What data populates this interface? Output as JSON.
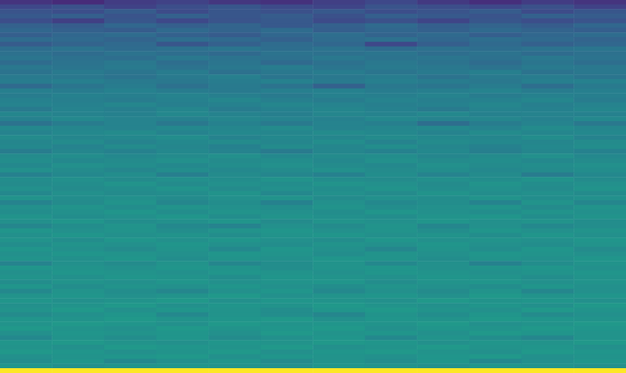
{
  "chart_data": {
    "type": "heatmap",
    "tick_labels": false,
    "grid": false,
    "value_range": [
      0,
      1
    ],
    "cells": [
      [
        0.15,
        0.12,
        0.18,
        0.2,
        0.16,
        0.14,
        0.19,
        0.22,
        0.17,
        0.13,
        0.18,
        0.15
      ],
      [
        0.22,
        0.25,
        0.2,
        0.24,
        0.27,
        0.23,
        0.21,
        0.26,
        0.24,
        0.22,
        0.25,
        0.2
      ],
      [
        0.26,
        0.24,
        0.29,
        0.23,
        0.27,
        0.25,
        0.28,
        0.24,
        0.26,
        0.29,
        0.23,
        0.27
      ],
      [
        0.28,
        0.3,
        0.26,
        0.31,
        0.27,
        0.29,
        0.25,
        0.3,
        0.28,
        0.26,
        0.31,
        0.29
      ],
      [
        0.24,
        0.19,
        0.27,
        0.22,
        0.26,
        0.28,
        0.23,
        0.25,
        0.21,
        0.27,
        0.24,
        0.26
      ],
      [
        0.31,
        0.29,
        0.33,
        0.3,
        0.32,
        0.28,
        0.31,
        0.34,
        0.3,
        0.32,
        0.29,
        0.33
      ],
      [
        0.33,
        0.31,
        0.29,
        0.34,
        0.32,
        0.35,
        0.3,
        0.33,
        0.31,
        0.34,
        0.32,
        0.3
      ],
      [
        0.3,
        0.33,
        0.35,
        0.31,
        0.29,
        0.33,
        0.36,
        0.32,
        0.34,
        0.3,
        0.33,
        0.35
      ],
      [
        0.35,
        0.34,
        0.32,
        0.36,
        0.34,
        0.31,
        0.35,
        0.37,
        0.33,
        0.36,
        0.34,
        0.32
      ],
      [
        0.29,
        0.32,
        0.34,
        0.27,
        0.31,
        0.35,
        0.33,
        0.22,
        0.3,
        0.34,
        0.31,
        0.33
      ],
      [
        0.36,
        0.38,
        0.35,
        0.37,
        0.39,
        0.36,
        0.38,
        0.35,
        0.37,
        0.36,
        0.38,
        0.39
      ],
      [
        0.37,
        0.35,
        0.38,
        0.36,
        0.34,
        0.38,
        0.37,
        0.39,
        0.36,
        0.38,
        0.35,
        0.37
      ],
      [
        0.39,
        0.37,
        0.36,
        0.4,
        0.38,
        0.37,
        0.4,
        0.38,
        0.39,
        0.37,
        0.4,
        0.38
      ],
      [
        0.35,
        0.38,
        0.4,
        0.36,
        0.39,
        0.34,
        0.37,
        0.4,
        0.38,
        0.35,
        0.39,
        0.36
      ],
      [
        0.4,
        0.39,
        0.41,
        0.38,
        0.4,
        0.42,
        0.39,
        0.41,
        0.4,
        0.38,
        0.41,
        0.4
      ],
      [
        0.38,
        0.41,
        0.39,
        0.42,
        0.37,
        0.4,
        0.42,
        0.39,
        0.41,
        0.43,
        0.38,
        0.4
      ],
      [
        0.41,
        0.4,
        0.38,
        0.41,
        0.43,
        0.39,
        0.4,
        0.42,
        0.38,
        0.41,
        0.42,
        0.39
      ],
      [
        0.42,
        0.43,
        0.41,
        0.4,
        0.42,
        0.44,
        0.41,
        0.43,
        0.42,
        0.4,
        0.43,
        0.44
      ],
      [
        0.34,
        0.39,
        0.42,
        0.37,
        0.41,
        0.38,
        0.31,
        0.4,
        0.39,
        0.42,
        0.36,
        0.41
      ],
      [
        0.43,
        0.42,
        0.44,
        0.42,
        0.41,
        0.43,
        0.44,
        0.42,
        0.43,
        0.45,
        0.42,
        0.43
      ],
      [
        0.42,
        0.44,
        0.43,
        0.45,
        0.43,
        0.41,
        0.44,
        0.43,
        0.45,
        0.42,
        0.44,
        0.43
      ],
      [
        0.44,
        0.43,
        0.42,
        0.44,
        0.46,
        0.43,
        0.42,
        0.45,
        0.43,
        0.44,
        0.46,
        0.42
      ],
      [
        0.45,
        0.44,
        0.46,
        0.43,
        0.44,
        0.46,
        0.45,
        0.43,
        0.44,
        0.46,
        0.43,
        0.45
      ],
      [
        0.41,
        0.45,
        0.43,
        0.46,
        0.42,
        0.44,
        0.46,
        0.44,
        0.41,
        0.45,
        0.44,
        0.46
      ],
      [
        0.46,
        0.45,
        0.44,
        0.47,
        0.45,
        0.43,
        0.46,
        0.45,
        0.47,
        0.44,
        0.45,
        0.44
      ],
      [
        0.44,
        0.47,
        0.45,
        0.44,
        0.46,
        0.45,
        0.44,
        0.47,
        0.45,
        0.46,
        0.44,
        0.47
      ],
      [
        0.38,
        0.42,
        0.45,
        0.4,
        0.44,
        0.41,
        0.45,
        0.43,
        0.36,
        0.42,
        0.45,
        0.4
      ],
      [
        0.47,
        0.46,
        0.45,
        0.47,
        0.46,
        0.48,
        0.45,
        0.46,
        0.47,
        0.45,
        0.48,
        0.46
      ],
      [
        0.45,
        0.47,
        0.48,
        0.45,
        0.47,
        0.46,
        0.48,
        0.47,
        0.45,
        0.48,
        0.46,
        0.47
      ],
      [
        0.48,
        0.46,
        0.47,
        0.49,
        0.45,
        0.47,
        0.46,
        0.48,
        0.47,
        0.46,
        0.49,
        0.45
      ],
      [
        0.46,
        0.48,
        0.45,
        0.47,
        0.48,
        0.46,
        0.49,
        0.45,
        0.48,
        0.47,
        0.46,
        0.48
      ],
      [
        0.47,
        0.45,
        0.48,
        0.46,
        0.44,
        0.48,
        0.46,
        0.49,
        0.46,
        0.44,
        0.47,
        0.49
      ],
      [
        0.42,
        0.46,
        0.44,
        0.47,
        0.45,
        0.41,
        0.46,
        0.44,
        0.47,
        0.43,
        0.46,
        0.44
      ],
      [
        0.48,
        0.49,
        0.47,
        0.48,
        0.5,
        0.47,
        0.48,
        0.49,
        0.46,
        0.48,
        0.5,
        0.47
      ],
      [
        0.49,
        0.47,
        0.48,
        0.5,
        0.48,
        0.49,
        0.47,
        0.5,
        0.48,
        0.49,
        0.47,
        0.48
      ],
      [
        0.47,
        0.5,
        0.49,
        0.47,
        0.49,
        0.5,
        0.48,
        0.47,
        0.5,
        0.48,
        0.49,
        0.5
      ],
      [
        0.5,
        0.48,
        0.46,
        0.49,
        0.47,
        0.48,
        0.5,
        0.48,
        0.49,
        0.47,
        0.48,
        0.49
      ],
      [
        0.44,
        0.47,
        0.49,
        0.43,
        0.48,
        0.46,
        0.44,
        0.49,
        0.45,
        0.48,
        0.42,
        0.47
      ],
      [
        0.49,
        0.5,
        0.48,
        0.5,
        0.49,
        0.51,
        0.49,
        0.48,
        0.5,
        0.49,
        0.51,
        0.48
      ],
      [
        0.48,
        0.49,
        0.51,
        0.48,
        0.5,
        0.49,
        0.51,
        0.5,
        0.48,
        0.51,
        0.49,
        0.5
      ],
      [
        0.5,
        0.48,
        0.49,
        0.51,
        0.48,
        0.5,
        0.49,
        0.51,
        0.49,
        0.5,
        0.48,
        0.51
      ],
      [
        0.47,
        0.5,
        0.48,
        0.49,
        0.51,
        0.47,
        0.5,
        0.48,
        0.51,
        0.49,
        0.5,
        0.48
      ],
      [
        0.51,
        0.49,
        0.5,
        0.48,
        0.5,
        0.51,
        0.48,
        0.5,
        0.49,
        0.51,
        0.49,
        0.5
      ],
      [
        0.45,
        0.48,
        0.51,
        0.46,
        0.49,
        0.44,
        0.5,
        0.47,
        0.49,
        0.45,
        0.51,
        0.46
      ],
      [
        0.5,
        0.51,
        0.49,
        0.51,
        0.5,
        0.49,
        0.51,
        0.49,
        0.5,
        0.51,
        0.48,
        0.51
      ],
      [
        0.49,
        0.5,
        0.52,
        0.49,
        0.51,
        0.5,
        0.49,
        0.52,
        0.5,
        0.49,
        0.51,
        0.5
      ],
      [
        0.51,
        0.49,
        0.5,
        0.52,
        0.49,
        0.51,
        0.5,
        0.49,
        0.51,
        0.52,
        0.49,
        0.51
      ],
      [
        0.5,
        0.52,
        0.49,
        0.5,
        0.52,
        0.48,
        0.51,
        0.5,
        0.52,
        0.5,
        0.51,
        0.49
      ],
      [
        0.46,
        0.49,
        0.51,
        0.47,
        0.45,
        0.5,
        0.48,
        0.51,
        0.46,
        0.5,
        0.47,
        0.49
      ],
      [
        0.52,
        0.5,
        0.51,
        0.49,
        0.51,
        0.52,
        0.5,
        0.51,
        0.49,
        0.52,
        0.5,
        0.51
      ],
      [
        0.5,
        0.52,
        0.5,
        0.51,
        0.49,
        0.51,
        0.52,
        0.5,
        0.51,
        0.49,
        0.52,
        0.5
      ],
      [
        0.51,
        0.49,
        0.52,
        0.5,
        0.52,
        0.5,
        0.49,
        0.52,
        0.5,
        0.51,
        0.5,
        0.52
      ],
      [
        0.49,
        0.51,
        0.5,
        0.52,
        0.5,
        0.49,
        0.51,
        0.5,
        0.52,
        0.5,
        0.49,
        0.51
      ],
      [
        0.52,
        0.5,
        0.48,
        0.51,
        0.47,
        0.52,
        0.5,
        0.46,
        0.51,
        0.49,
        0.52,
        0.48
      ],
      [
        0.5,
        0.52,
        0.51,
        0.5,
        0.52,
        0.51,
        0.49,
        0.51,
        0.5,
        0.52,
        0.51,
        0.5
      ],
      [
        0.51,
        0.5,
        0.52,
        0.49,
        0.51,
        0.5,
        0.52,
        0.51,
        0.49,
        0.51,
        0.5,
        0.52
      ],
      [
        0.45,
        0.5,
        0.48,
        0.51,
        0.46,
        0.49,
        0.51,
        0.47,
        0.5,
        0.44,
        0.49,
        0.51
      ],
      [
        0.52,
        0.51,
        0.5,
        0.52,
        0.51,
        0.49,
        0.51,
        0.52,
        0.5,
        0.51,
        0.52,
        0.5
      ],
      [
        0.5,
        0.52,
        0.51,
        0.5,
        0.52,
        0.51,
        0.5,
        0.52,
        0.51,
        0.5,
        0.51,
        0.52
      ],
      [
        0.51,
        0.5,
        0.52,
        0.51,
        0.49,
        0.52,
        0.51,
        0.5,
        0.52,
        0.51,
        0.49,
        0.51
      ],
      [
        0.49,
        0.51,
        0.5,
        0.52,
        0.5,
        0.51,
        0.52,
        0.49,
        0.51,
        0.52,
        0.5,
        0.51
      ],
      [
        0.52,
        0.49,
        0.51,
        0.5,
        0.52,
        0.5,
        0.49,
        0.51,
        0.5,
        0.49,
        0.52,
        0.5
      ],
      [
        0.47,
        0.51,
        0.49,
        0.46,
        0.5,
        0.52,
        0.47,
        0.5,
        0.48,
        0.51,
        0.46,
        0.5
      ],
      [
        0.51,
        0.52,
        0.5,
        0.51,
        0.53,
        0.5,
        0.51,
        0.52,
        0.5,
        0.53,
        0.51,
        0.52
      ],
      [
        0.52,
        0.5,
        0.51,
        0.53,
        0.5,
        0.52,
        0.51,
        0.5,
        0.53,
        0.51,
        0.52,
        0.5
      ],
      [
        0.5,
        0.51,
        0.53,
        0.5,
        0.52,
        0.51,
        0.53,
        0.51,
        0.5,
        0.52,
        0.5,
        0.53
      ],
      [
        0.51,
        0.53,
        0.5,
        0.52,
        0.51,
        0.49,
        0.52,
        0.53,
        0.51,
        0.5,
        0.53,
        0.51
      ],
      [
        0.48,
        0.5,
        0.52,
        0.47,
        0.51,
        0.49,
        0.46,
        0.51,
        0.49,
        0.52,
        0.48,
        0.5
      ],
      [
        0.52,
        0.51,
        0.53,
        0.51,
        0.52,
        0.53,
        0.5,
        0.52,
        0.51,
        0.53,
        0.52,
        0.51
      ],
      [
        0.51,
        0.53,
        0.52,
        0.5,
        0.53,
        0.51,
        0.52,
        0.51,
        0.53,
        0.5,
        0.51,
        0.53
      ],
      [
        0.53,
        0.51,
        0.5,
        0.53,
        0.51,
        0.52,
        0.53,
        0.5,
        0.52,
        0.51,
        0.53,
        0.52
      ],
      [
        0.5,
        0.52,
        0.51,
        0.52,
        0.5,
        0.53,
        0.51,
        0.52,
        0.5,
        0.53,
        0.52,
        0.51
      ],
      [
        0.47,
        0.51,
        0.49,
        0.52,
        0.48,
        0.5,
        0.52,
        0.47,
        0.51,
        0.49,
        0.46,
        0.51
      ],
      [
        0.52,
        0.53,
        0.51,
        0.5,
        0.52,
        0.51,
        0.53,
        0.52,
        0.5,
        0.52,
        0.51,
        0.53
      ],
      [
        0.51,
        0.5,
        0.53,
        0.52,
        0.51,
        0.53,
        0.5,
        0.51,
        0.53,
        0.51,
        0.52,
        0.5
      ],
      [
        0.53,
        0.52,
        0.5,
        0.51,
        0.53,
        0.5,
        0.52,
        0.53,
        0.51,
        0.5,
        0.53,
        0.52
      ],
      [
        0.5,
        0.51,
        0.52,
        0.53,
        0.5,
        0.52,
        0.51,
        0.5,
        0.52,
        0.53,
        0.5,
        0.51
      ],
      [
        0.49,
        0.52,
        0.47,
        0.5,
        0.52,
        0.48,
        0.51,
        0.49,
        0.52,
        0.47,
        0.5,
        0.52
      ],
      [
        0.52,
        0.5,
        0.51,
        0.52,
        0.51,
        0.5,
        0.52,
        0.51,
        0.5,
        0.52,
        0.51,
        0.5
      ],
      [
        1.0,
        1.0,
        1.0,
        1.0,
        1.0,
        1.0,
        1.0,
        1.0,
        1.0,
        1.0,
        1.0,
        1.0
      ]
    ]
  }
}
